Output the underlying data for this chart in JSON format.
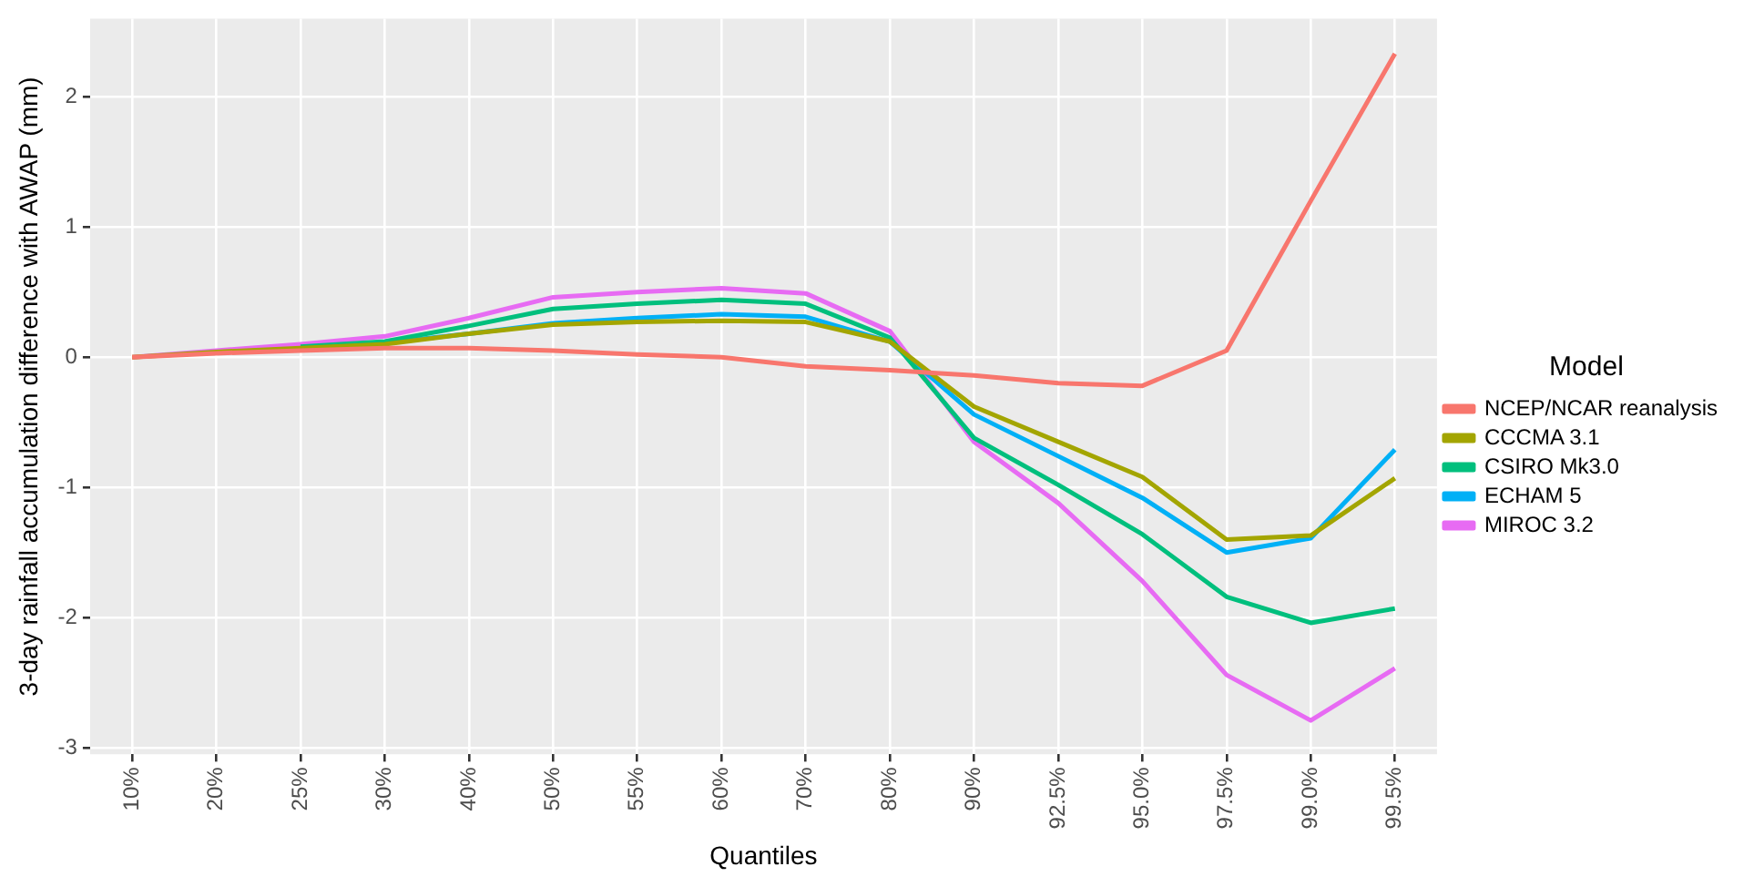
{
  "chart_data": {
    "type": "line",
    "xlabel": "Quantiles",
    "ylabel": "3-day rainfall accumulation difference with AWAP (mm)",
    "legend_title": "Model",
    "legend": "right",
    "grid": true,
    "line_style": "solid",
    "marker": "none",
    "categories": [
      "10%",
      "20%",
      "25%",
      "30%",
      "40%",
      "50%",
      "55%",
      "60%",
      "70%",
      "80%",
      "90%",
      "92.5%",
      "95.0%",
      "97.5%",
      "99.0%",
      "99.5%"
    ],
    "ylim": [
      -3.05,
      2.6
    ],
    "yticks": [
      -3,
      -2,
      -1,
      0,
      1,
      2
    ],
    "series": [
      {
        "name": "NCEP/NCAR reanalysis",
        "color": "#f8766d",
        "values": [
          0,
          0.03,
          0.05,
          0.07,
          0.07,
          0.05,
          0.02,
          0.0,
          -0.07,
          -0.1,
          -0.14,
          -0.2,
          -0.22,
          0.05,
          1.2,
          2.33
        ]
      },
      {
        "name": "CCCMA 3.1",
        "color": "#a3a500",
        "values": [
          0,
          0.04,
          0.07,
          0.1,
          0.18,
          0.25,
          0.27,
          0.28,
          0.27,
          0.12,
          -0.38,
          -0.65,
          -0.92,
          -1.4,
          -1.37,
          -0.93
        ]
      },
      {
        "name": "CSIRO Mk3.0",
        "color": "#00bf7d",
        "values": [
          null,
          null,
          0.08,
          0.12,
          0.24,
          0.37,
          0.41,
          0.44,
          0.41,
          0.15,
          -0.62,
          -0.98,
          -1.36,
          -1.84,
          -2.04,
          -1.93
        ]
      },
      {
        "name": "ECHAM 5",
        "color": "#00b0f6",
        "values": [
          null,
          null,
          0.07,
          0.11,
          0.18,
          0.26,
          0.3,
          0.33,
          0.31,
          0.12,
          -0.44,
          -0.76,
          -1.08,
          -1.5,
          -1.39,
          -0.71
        ]
      },
      {
        "name": "MIROC 3.2",
        "color": "#e76bf3",
        "values": [
          0,
          0.05,
          0.1,
          0.16,
          0.3,
          0.46,
          0.5,
          0.53,
          0.49,
          0.2,
          -0.65,
          -1.12,
          -1.72,
          -2.44,
          -2.79,
          -2.39
        ]
      }
    ]
  }
}
